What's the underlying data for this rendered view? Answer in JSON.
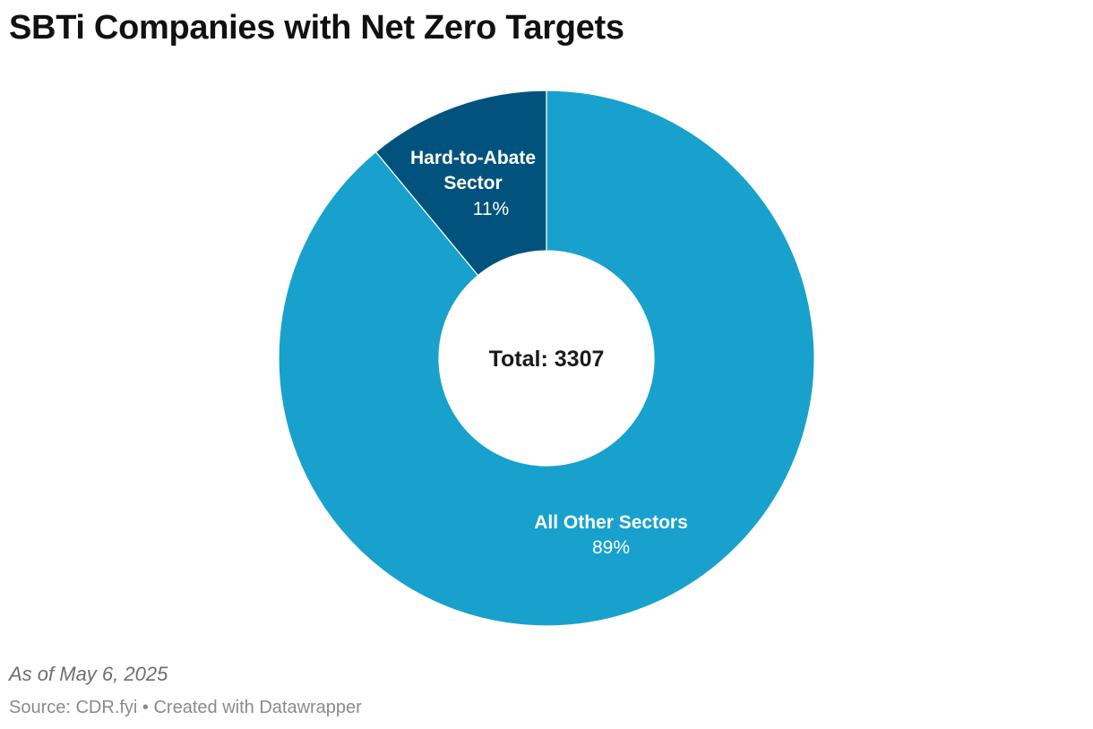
{
  "title": "SBTi Companies with Net Zero Targets",
  "chart_data": {
    "type": "pie",
    "variant": "donut",
    "title": "SBTi Companies with Net Zero Targets",
    "center_label": "Total: 3307",
    "slices": [
      {
        "name_lines": [
          "Hard-to-Abate",
          "Sector"
        ],
        "value": 11,
        "value_label": "11%",
        "color": "#01537d"
      },
      {
        "name_lines": [
          "All Other Sectors"
        ],
        "value": 89,
        "value_label": "89%",
        "color": "#18a1cd"
      }
    ]
  },
  "footer": {
    "note": "As of May 6, 2025",
    "source": "Source: CDR.fyi • Created with Datawrapper"
  }
}
